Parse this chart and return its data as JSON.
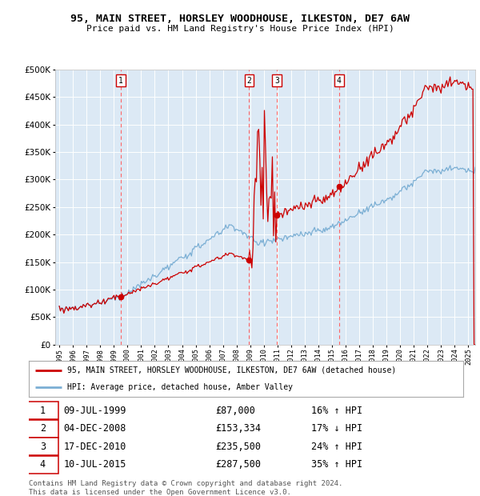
{
  "title": "95, MAIN STREET, HORSLEY WOODHOUSE, ILKESTON, DE7 6AW",
  "subtitle": "Price paid vs. HM Land Registry's House Price Index (HPI)",
  "red_line_label": "95, MAIN STREET, HORSLEY WOODHOUSE, ILKESTON, DE7 6AW (detached house)",
  "blue_line_label": "HPI: Average price, detached house, Amber Valley",
  "footer": "Contains HM Land Registry data © Crown copyright and database right 2024.\nThis data is licensed under the Open Government Licence v3.0.",
  "transactions": [
    {
      "num": 1,
      "date": "09-JUL-1999",
      "year": 1999.52,
      "price": 87000,
      "rel": "16% ↑ HPI"
    },
    {
      "num": 2,
      "date": "04-DEC-2008",
      "year": 2008.92,
      "price": 153334,
      "rel": "17% ↓ HPI"
    },
    {
      "num": 3,
      "date": "17-DEC-2010",
      "year": 2010.96,
      "price": 235500,
      "rel": "24% ↑ HPI"
    },
    {
      "num": 4,
      "date": "10-JUL-2015",
      "year": 2015.52,
      "price": 287500,
      "rel": "35% ↑ HPI"
    }
  ],
  "ylim": [
    0,
    500000
  ],
  "xlim_start": 1994.7,
  "xlim_end": 2025.5,
  "background_color": "#dce9f5",
  "grid_color": "#ffffff",
  "red_color": "#cc0000",
  "blue_color": "#7bafd4",
  "vline_color": "#ff6666",
  "table_rows": [
    [
      "1",
      "09-JUL-1999",
      "£87,000",
      "16% ↑ HPI"
    ],
    [
      "2",
      "04-DEC-2008",
      "£153,334",
      "17% ↓ HPI"
    ],
    [
      "3",
      "17-DEC-2010",
      "£235,500",
      "24% ↑ HPI"
    ],
    [
      "4",
      "10-JUL-2015",
      "£287,500",
      "35% ↑ HPI"
    ]
  ]
}
